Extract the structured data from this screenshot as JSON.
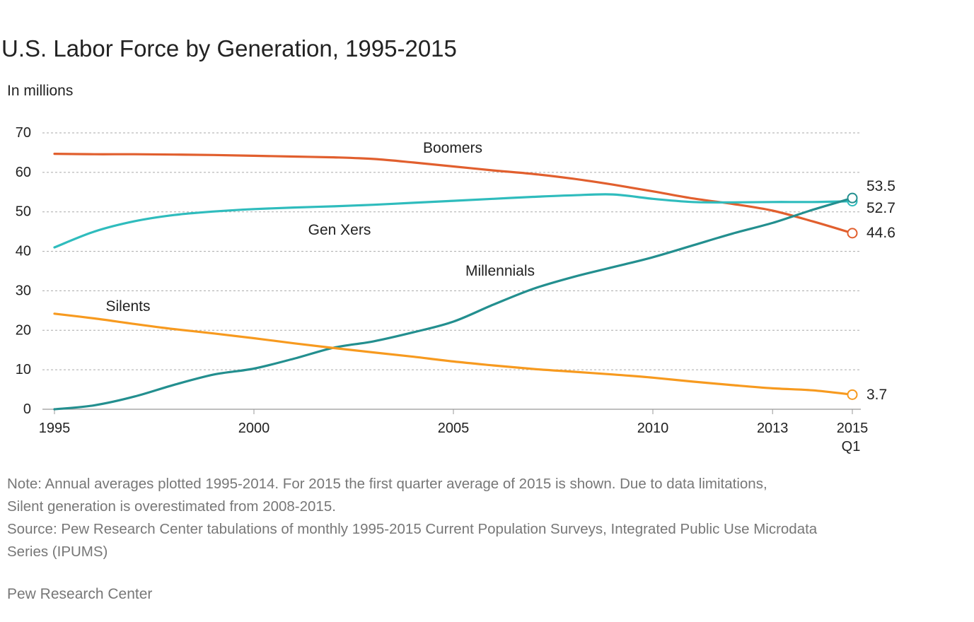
{
  "chart_data": {
    "type": "line",
    "title": "U.S. Labor Force by Generation, 1995-2015",
    "ylabel": "In millions",
    "ylim": [
      0,
      70
    ],
    "yticks": [
      "0",
      "10",
      "20",
      "30",
      "40",
      "50",
      "60",
      "70"
    ],
    "xticks": [
      {
        "x": 1995,
        "label": "1995"
      },
      {
        "x": 2000,
        "label": "2000"
      },
      {
        "x": 2005,
        "label": "2005"
      },
      {
        "x": 2010,
        "label": "2010"
      },
      {
        "x": 2013,
        "label": "2013"
      },
      {
        "x": 2015,
        "label": "2015",
        "sublabel": "Q1"
      }
    ],
    "xlim": [
      1995,
      2015
    ],
    "grid": true,
    "series": [
      {
        "name": "Boomers",
        "color": "#e15f2e",
        "x": [
          1995,
          1996,
          1997,
          1998,
          1999,
          2000,
          2001,
          2002,
          2003,
          2004,
          2005,
          2006,
          2007,
          2008,
          2009,
          2010,
          2011,
          2012,
          2013,
          2014,
          2015
        ],
        "values": [
          64.7,
          64.6,
          64.6,
          64.5,
          64.4,
          64.2,
          64.0,
          63.8,
          63.4,
          62.5,
          61.5,
          60.5,
          59.6,
          58.4,
          56.9,
          55.2,
          53.4,
          52.0,
          50.3,
          47.6,
          44.6
        ],
        "end_label": "44.6"
      },
      {
        "name": "Gen Xers",
        "color": "#2fbcbd",
        "x": [
          1995,
          1996,
          1997,
          1998,
          1999,
          2000,
          2001,
          2002,
          2003,
          2004,
          2005,
          2006,
          2007,
          2008,
          2009,
          2010,
          2011,
          2012,
          2013,
          2014,
          2015
        ],
        "values": [
          41.0,
          45.0,
          47.6,
          49.2,
          50.1,
          50.7,
          51.1,
          51.4,
          51.8,
          52.3,
          52.8,
          53.3,
          53.8,
          54.2,
          54.4,
          53.3,
          52.5,
          52.4,
          52.5,
          52.5,
          52.7
        ],
        "end_label": "52.7"
      },
      {
        "name": "Millennials",
        "color": "#238f8f",
        "x": [
          1995,
          1996,
          1997,
          1998,
          1999,
          2000,
          2001,
          2002,
          2003,
          2004,
          2005,
          2006,
          2007,
          2008,
          2009,
          2010,
          2011,
          2012,
          2013,
          2014,
          2015
        ],
        "values": [
          0.0,
          1.0,
          3.2,
          6.2,
          8.8,
          10.3,
          12.8,
          15.6,
          17.2,
          19.5,
          22.2,
          26.5,
          30.5,
          33.5,
          36.0,
          38.5,
          41.5,
          44.5,
          47.2,
          50.5,
          53.5
        ],
        "end_label": "53.5"
      },
      {
        "name": "Silents",
        "color": "#f79a1f",
        "x": [
          1995,
          1996,
          1997,
          1998,
          1999,
          2000,
          2001,
          2002,
          2003,
          2004,
          2005,
          2006,
          2007,
          2008,
          2009,
          2010,
          2011,
          2012,
          2013,
          2014,
          2015
        ],
        "values": [
          24.2,
          23.0,
          21.6,
          20.3,
          19.2,
          18.0,
          16.7,
          15.5,
          14.4,
          13.3,
          12.1,
          11.1,
          10.2,
          9.5,
          8.8,
          8.0,
          7.0,
          6.1,
          5.3,
          4.8,
          3.7
        ],
        "end_label": "3.7"
      }
    ]
  },
  "notes": {
    "line1": "Note: Annual averages plotted 1995-2014. For 2015 the first quarter average of 2015 is shown. Due to data limitations,",
    "line2": "Silent generation is overestimated from 2008-2015.",
    "line3": "Source: Pew Research Center tabulations of monthly 1995-2015 Current Population Surveys, Integrated Public Use Microdata",
    "line4": "Series (IPUMS)"
  },
  "credit": "Pew Research Center"
}
